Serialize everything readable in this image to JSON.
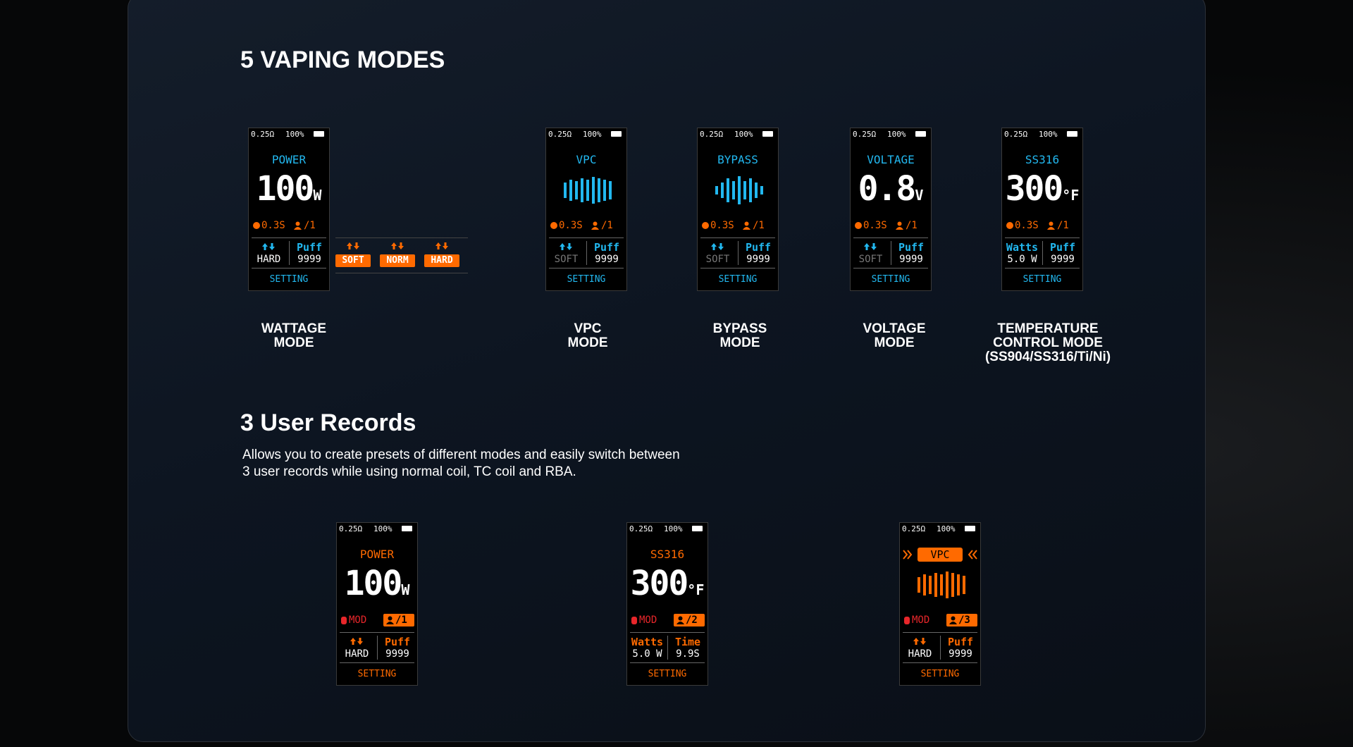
{
  "vaping_modes": {
    "title": "5 VAPING MODES",
    "modes": [
      {
        "label": [
          "WATTAGE",
          "MODE"
        ],
        "screen": {
          "resistance": "0.25Ω",
          "battery": "100%",
          "mode": "POWER",
          "value": "100",
          "unit": "W",
          "time": "0.3S",
          "user": "/1",
          "left_value": "HARD",
          "right_label": "Puff",
          "right_value": "9999",
          "setting": "SETTING"
        },
        "options": [
          "SOFT",
          "NORM",
          "HARD"
        ]
      },
      {
        "label": [
          "VPC",
          "MODE"
        ],
        "screen": {
          "resistance": "0.25Ω",
          "battery": "100%",
          "mode": "VPC",
          "time": "0.3S",
          "user": "/1",
          "left_value": "SOFT",
          "right_label": "Puff",
          "right_value": "9999",
          "setting": "SETTING"
        }
      },
      {
        "label": [
          "BYPASS",
          "MODE"
        ],
        "screen": {
          "resistance": "0.25Ω",
          "battery": "100%",
          "mode": "BYPASS",
          "time": "0.3S",
          "user": "/1",
          "left_value": "SOFT",
          "right_label": "Puff",
          "right_value": "9999",
          "setting": "SETTING"
        }
      },
      {
        "label": [
          "VOLTAGE",
          "MODE"
        ],
        "screen": {
          "resistance": "0.25Ω",
          "battery": "100%",
          "mode": "VOLTAGE",
          "value": "0.8",
          "unit": "V",
          "time": "0.3S",
          "user": "/1",
          "left_value": "SOFT",
          "right_label": "Puff",
          "right_value": "9999",
          "setting": "SETTING"
        }
      },
      {
        "label": [
          "TEMPERATURE",
          "CONTROL MODE",
          "(SS904/SS316/Ti/Ni)"
        ],
        "screen": {
          "resistance": "0.25Ω",
          "battery": "100%",
          "mode": "SS316",
          "value": "300",
          "unit": "°F",
          "time": "0.3S",
          "user": "/1",
          "left_label": "Watts",
          "left_value": "5.0 W",
          "right_label": "Puff",
          "right_value": "9999",
          "setting": "SETTING"
        }
      }
    ]
  },
  "user_records": {
    "title": "3 User Records",
    "description": [
      "Allows you to create presets of different modes and easily switch between",
      "3 user records while using normal coil, TC coil and RBA."
    ],
    "records": [
      {
        "screen": {
          "resistance": "0.25Ω",
          "battery": "100%",
          "mode": "POWER",
          "value": "100",
          "unit": "W",
          "mod": "MOD",
          "user": "/1",
          "left_value": "HARD",
          "right_label": "Puff",
          "right_value": "9999",
          "setting": "SETTING"
        }
      },
      {
        "screen": {
          "resistance": "0.25Ω",
          "battery": "100%",
          "mode": "SS316",
          "value": "300",
          "unit": "°F",
          "mod": "MOD",
          "user": "/2",
          "left_label": "Watts",
          "left_value": "5.0 W",
          "right_label": "Time",
          "right_value": "9.9S",
          "setting": "SETTING"
        }
      },
      {
        "screen": {
          "resistance": "0.25Ω",
          "battery": "100%",
          "mode": "VPC",
          "mod": "MOD",
          "user": "/3",
          "left_value": "HARD",
          "right_label": "Puff",
          "right_value": "9999",
          "setting": "SETTING"
        }
      }
    ]
  }
}
